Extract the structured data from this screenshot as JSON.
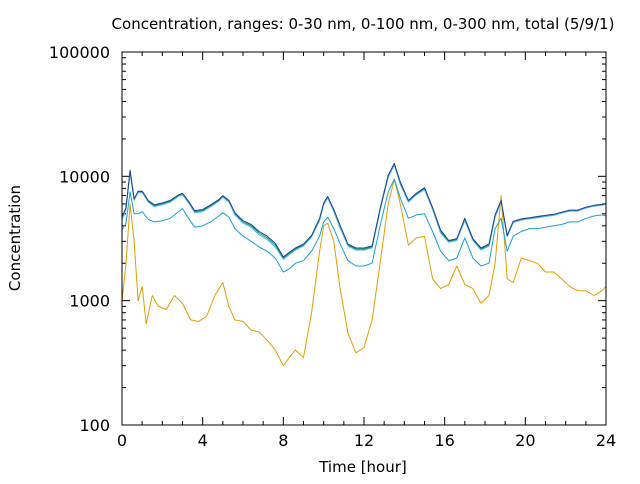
{
  "chart_data": {
    "type": "line",
    "title": "Concentration, ranges: 0-30 nm, 0-100 nm, 0-300 nm, total (5/9/1)",
    "xlabel": "Time [hour]",
    "ylabel": "Concentration",
    "xlim": [
      0,
      24
    ],
    "ylim": [
      100,
      100000
    ],
    "yscale": "log",
    "grid": false,
    "legend": "none",
    "x_ticks": [
      "0",
      "4",
      "8",
      "12",
      "16",
      "20",
      "24"
    ],
    "y_ticks": [
      "100",
      "1000",
      "10000",
      "100000"
    ],
    "series": [
      {
        "color": "#e0a000",
        "x": [
          0,
          0.2,
          0.4,
          0.6,
          0.8,
          1.0,
          1.2,
          1.5,
          1.8,
          2.2,
          2.6,
          3.0,
          3.4,
          3.8,
          4.2,
          4.6,
          5.0,
          5.3,
          5.6,
          6.0,
          6.4,
          6.8,
          7.2,
          7.6,
          8.0,
          8.3,
          8.6,
          9.0,
          9.4,
          9.8,
          10.0,
          10.2,
          10.5,
          10.8,
          11.2,
          11.6,
          12.0,
          12.4,
          12.8,
          13.2,
          13.5,
          13.8,
          14.2,
          14.6,
          15.0,
          15.4,
          15.8,
          16.2,
          16.6,
          17.0,
          17.4,
          17.8,
          18.2,
          18.5,
          18.8,
          19.1,
          19.4,
          19.8,
          20.2,
          20.6,
          21.0,
          21.4,
          21.8,
          22.2,
          22.6,
          23.0,
          23.4,
          23.8,
          24.0
        ],
        "values": [
          1000,
          2000,
          6000,
          3000,
          1000,
          1300,
          650,
          1100,
          900,
          850,
          1100,
          950,
          700,
          680,
          750,
          1100,
          1400,
          900,
          700,
          680,
          580,
          560,
          480,
          400,
          300,
          350,
          400,
          350,
          800,
          2500,
          4000,
          4200,
          3000,
          1300,
          550,
          380,
          420,
          700,
          2000,
          6000,
          9500,
          6000,
          2800,
          3200,
          3300,
          1500,
          1250,
          1350,
          1900,
          1350,
          1250,
          950,
          1100,
          2000,
          7000,
          1500,
          1400,
          2200,
          2100,
          2000,
          1700,
          1700,
          1500,
          1300,
          1200,
          1200,
          1100,
          1200,
          1300
        ]
      },
      {
        "color": "#1a9fd6",
        "x": [
          0,
          0.2,
          0.4,
          0.6,
          0.8,
          1.0,
          1.3,
          1.6,
          2.0,
          2.4,
          2.8,
          3.0,
          3.3,
          3.6,
          4.0,
          4.4,
          4.8,
          5.0,
          5.3,
          5.6,
          6.0,
          6.4,
          6.8,
          7.2,
          7.6,
          8.0,
          8.3,
          8.6,
          9.0,
          9.4,
          9.8,
          10.0,
          10.2,
          10.5,
          10.8,
          11.2,
          11.6,
          12.0,
          12.4,
          12.8,
          13.2,
          13.5,
          13.8,
          14.2,
          14.6,
          15.0,
          15.4,
          15.8,
          16.2,
          16.6,
          17.0,
          17.4,
          17.8,
          18.2,
          18.5,
          18.8,
          19.1,
          19.4,
          19.8,
          20.2,
          20.6,
          21.0,
          21.4,
          21.8,
          22.2,
          22.6,
          23.0,
          23.4,
          23.8,
          24.0
        ],
        "values": [
          3700,
          4200,
          7500,
          5000,
          5000,
          5200,
          4500,
          4300,
          4400,
          4600,
          5200,
          5500,
          4600,
          3900,
          4000,
          4300,
          4800,
          5100,
          4700,
          3800,
          3300,
          3000,
          2700,
          2500,
          2200,
          1700,
          1800,
          2000,
          2100,
          2500,
          3300,
          4300,
          4700,
          3800,
          2900,
          2100,
          1900,
          1900,
          2000,
          4000,
          7500,
          9500,
          6700,
          4600,
          4900,
          5000,
          3600,
          2500,
          2100,
          2200,
          3200,
          2200,
          1900,
          2000,
          3800,
          4600,
          2500,
          3300,
          3600,
          3800,
          3800,
          3900,
          4000,
          4100,
          4300,
          4300,
          4600,
          4800,
          4900,
          4800
        ]
      },
      {
        "color": "#009e73",
        "x": [
          0,
          0.2,
          0.4,
          0.6,
          0.8,
          1.0,
          1.3,
          1.6,
          2.0,
          2.4,
          2.8,
          3.0,
          3.3,
          3.6,
          4.0,
          4.4,
          4.8,
          5.0,
          5.3,
          5.6,
          6.0,
          6.4,
          6.8,
          7.2,
          7.6,
          8.0,
          8.3,
          8.6,
          9.0,
          9.4,
          9.8,
          10.0,
          10.2,
          10.5,
          10.8,
          11.2,
          11.6,
          12.0,
          12.4,
          12.8,
          13.2,
          13.5,
          13.8,
          14.2,
          14.6,
          15.0,
          15.4,
          15.8,
          16.2,
          16.6,
          17.0,
          17.4,
          17.8,
          18.2,
          18.5,
          18.8,
          19.1,
          19.4,
          19.8,
          20.2,
          20.6,
          21.0,
          21.4,
          21.8,
          22.2,
          22.6,
          23.0,
          23.4,
          23.8,
          24.0
        ],
        "values": [
          4600,
          5500,
          11000,
          6500,
          7500,
          7500,
          6300,
          5800,
          6000,
          6300,
          7000,
          7200,
          6200,
          5200,
          5300,
          5800,
          6400,
          6900,
          6300,
          5000,
          4300,
          4000,
          3500,
          3200,
          2800,
          2200,
          2400,
          2600,
          2800,
          3300,
          4500,
          6000,
          6800,
          5300,
          4000,
          2800,
          2600,
          2600,
          2700,
          5400,
          10000,
          12500,
          8800,
          6300,
          7200,
          8000,
          5500,
          3600,
          3000,
          3100,
          4500,
          3100,
          2600,
          2800,
          4800,
          6300,
          3300,
          4300,
          4500,
          4600,
          4700,
          4800,
          4900,
          5100,
          5300,
          5300,
          5600,
          5800,
          5900,
          6000
        ]
      },
      {
        "color": "#56b4e9",
        "x": [
          0,
          0.2,
          0.4,
          0.6,
          0.8,
          1.0,
          1.3,
          1.6,
          2.0,
          2.4,
          2.8,
          3.0,
          3.3,
          3.6,
          4.0,
          4.4,
          4.8,
          5.0,
          5.3,
          5.6,
          6.0,
          6.4,
          6.8,
          7.2,
          7.6,
          8.0,
          8.3,
          8.6,
          9.0,
          9.4,
          9.8,
          10.0,
          10.2,
          10.5,
          10.8,
          11.2,
          11.6,
          12.0,
          12.4,
          12.8,
          13.2,
          13.5,
          13.8,
          14.2,
          14.6,
          15.0,
          15.4,
          15.8,
          16.2,
          16.6,
          17.0,
          17.4,
          17.8,
          18.2,
          18.5,
          18.8,
          19.1,
          19.4,
          19.8,
          20.2,
          20.6,
          21.0,
          21.4,
          21.8,
          22.2,
          22.6,
          23.0,
          23.4,
          23.8,
          24.0
        ],
        "values": [
          4500,
          5400,
          10800,
          6400,
          7400,
          7400,
          6200,
          5700,
          5900,
          6200,
          6900,
          7100,
          6100,
          5100,
          5200,
          5700,
          6300,
          6800,
          6200,
          4900,
          4200,
          3900,
          3400,
          3100,
          2700,
          2150,
          2350,
          2550,
          2750,
          3250,
          4400,
          5900,
          6700,
          5200,
          3900,
          2750,
          2550,
          2550,
          2650,
          5300,
          9800,
          12300,
          8600,
          6200,
          7100,
          7800,
          5400,
          3500,
          2950,
          3050,
          4400,
          3050,
          2550,
          2750,
          4700,
          6200,
          3250,
          4250,
          4450,
          4550,
          4650,
          4750,
          4850,
          5050,
          5250,
          5250,
          5550,
          5750,
          5850,
          5950
        ]
      },
      {
        "color": "#1f3f8f",
        "x": [
          0,
          0.2,
          0.4,
          0.6,
          0.8,
          1.0,
          1.3,
          1.6,
          2.0,
          2.4,
          2.8,
          3.0,
          3.3,
          3.6,
          4.0,
          4.4,
          4.8,
          5.0,
          5.3,
          5.6,
          6.0,
          6.4,
          6.8,
          7.2,
          7.6,
          8.0,
          8.3,
          8.6,
          9.0,
          9.4,
          9.8,
          10.0,
          10.2,
          10.5,
          10.8,
          11.2,
          11.6,
          12.0,
          12.4,
          12.8,
          13.2,
          13.5,
          13.8,
          14.2,
          14.6,
          15.0,
          15.4,
          15.8,
          16.2,
          16.6,
          17.0,
          17.4,
          17.8,
          18.2,
          18.5,
          18.8,
          19.1,
          19.4,
          19.8,
          20.2,
          20.6,
          21.0,
          21.4,
          21.8,
          22.2,
          22.6,
          23.0,
          23.4,
          23.8,
          24.0
        ],
        "values": [
          4700,
          5600,
          11200,
          6600,
          7600,
          7600,
          6400,
          5900,
          6100,
          6400,
          7100,
          7300,
          6300,
          5300,
          5400,
          5900,
          6500,
          7000,
          6400,
          5100,
          4400,
          4100,
          3600,
          3300,
          2900,
          2250,
          2450,
          2650,
          2850,
          3350,
          4600,
          6100,
          6900,
          5400,
          4100,
          2850,
          2650,
          2650,
          2750,
          5500,
          10200,
          12700,
          9000,
          6400,
          7300,
          8100,
          5600,
          3700,
          3050,
          3150,
          4600,
          3150,
          2650,
          2850,
          4900,
          6400,
          3350,
          4350,
          4550,
          4650,
          4750,
          4850,
          4950,
          5150,
          5350,
          5350,
          5650,
          5850,
          5950,
          6050
        ]
      }
    ]
  }
}
